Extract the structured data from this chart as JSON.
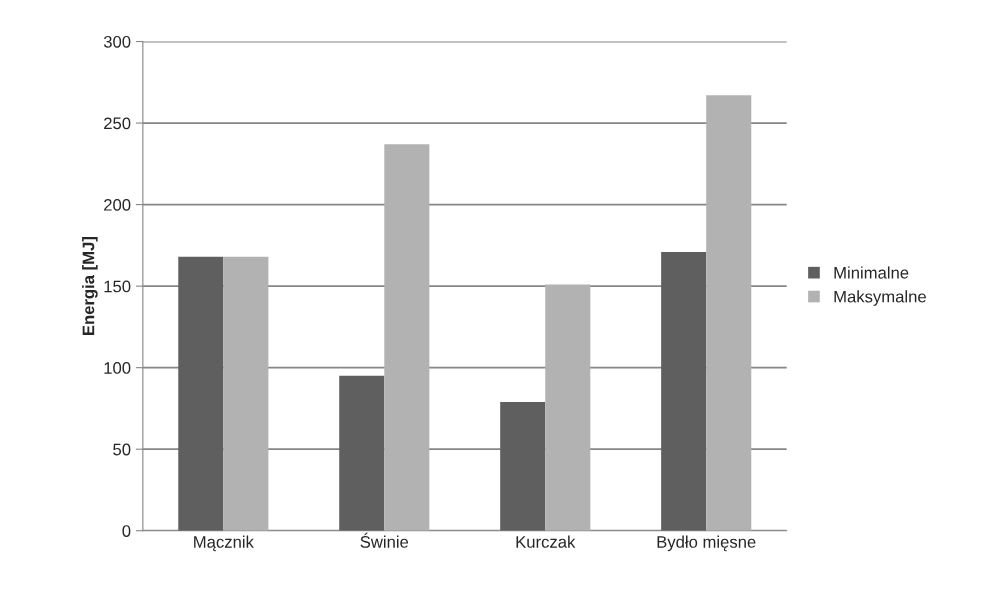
{
  "chart_data": {
    "type": "bar",
    "ylabel": "Energia [MJ]",
    "categories": [
      "Mącznik",
      "Świnie",
      "Kurczak",
      "Bydło mięsne"
    ],
    "series": [
      {
        "name": "Minimalne",
        "color": "#5f5f5f",
        "values": [
          168,
          95,
          79,
          171
        ]
      },
      {
        "name": "Maksymalne",
        "color": "#b2b2b2",
        "values": [
          168,
          237,
          151,
          267
        ]
      }
    ],
    "ylim": [
      0,
      300
    ],
    "yticks": [
      0,
      50,
      100,
      150,
      200,
      250,
      300
    ],
    "grid": "y",
    "legend": "right"
  }
}
